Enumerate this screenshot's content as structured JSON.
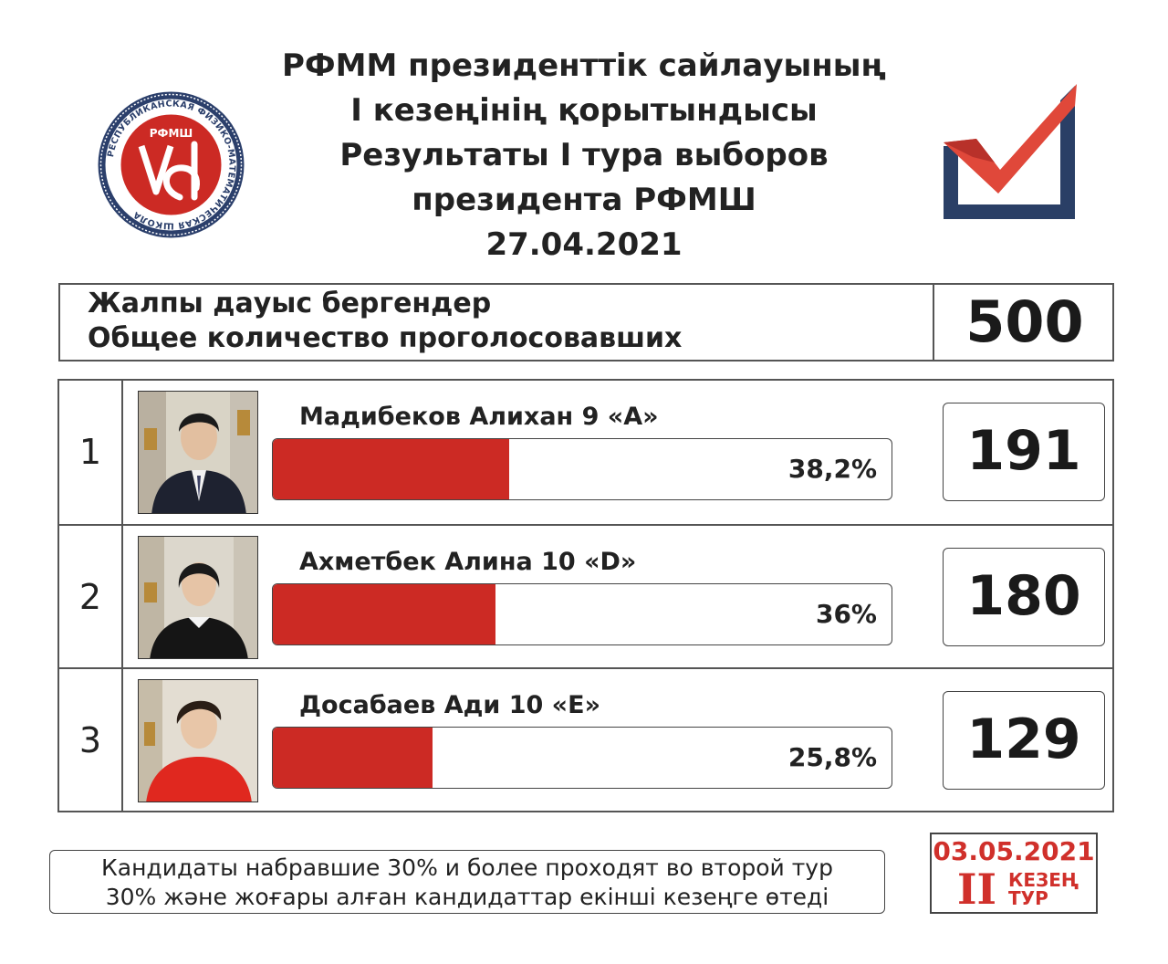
{
  "header": {
    "title_lines": [
      "РФММ президенттік сайлауының",
      "І кезеңінің қорытындысы",
      "Результаты I тура выборов",
      "президента РФМШ",
      "27.04.2021"
    ]
  },
  "logo": {
    "text_ring": "РЕСПУБЛИКАНСКАЯ ФИЗИКО-МАТЕМАТИЧЕСКАЯ ШКОЛА",
    "abbr": "РФМШ"
  },
  "total": {
    "label_kz": "Жалпы дауыс бергендер",
    "label_ru": "Общее количество проголосовавших",
    "value": "500"
  },
  "chart_data": {
    "type": "bar",
    "categories": [
      "Мадибеков Алихан 9 «А»",
      "Ахметбек Алина 10 «D»",
      "Досабаев Ади 10 «Е»"
    ],
    "ranks": [
      "1",
      "2",
      "3"
    ],
    "values": [
      191,
      180,
      129
    ],
    "percent_values": [
      38.2,
      36,
      25.8
    ],
    "percent_labels": [
      "38,2%",
      "36%",
      "25,8%"
    ],
    "vote_labels": [
      "191",
      "180",
      "129"
    ],
    "total": 500,
    "xlim": [
      0,
      100
    ],
    "bar_color": "#cc2a24"
  },
  "footer": {
    "note_ru": "Кандидаты набравшие 30% и более проходят во второй тур",
    "note_kz": "30% және жоғары алған кандидаттар екінші кезеңге өтеді",
    "round2_date": "03.05.2021",
    "round2_roman": "II",
    "round2_word1": "КЕЗЕҢ",
    "round2_word2": "ТУР"
  },
  "colors": {
    "accent_red": "#cc2a24",
    "logo_navy": "#2b3f6b",
    "check_navy": "#2a3f66"
  }
}
